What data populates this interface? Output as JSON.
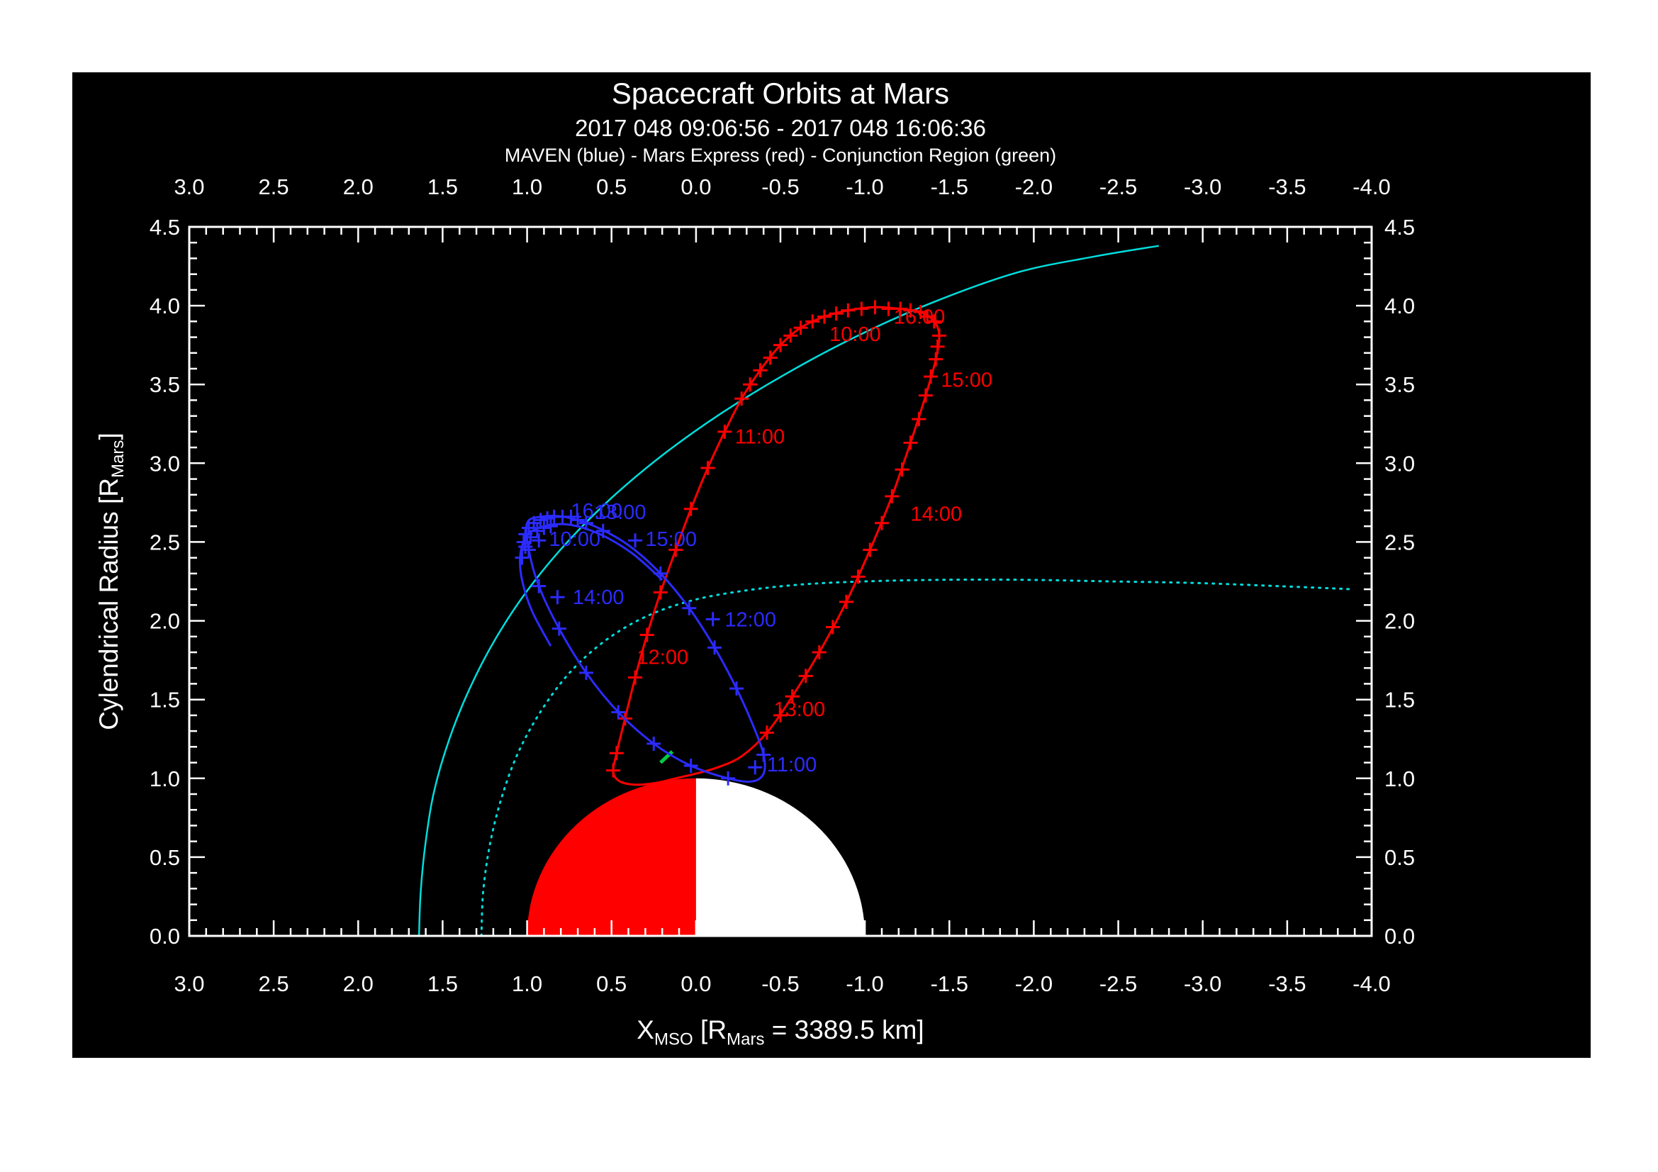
{
  "app": {
    "background": "#ffffff",
    "canvas_background": "#000000",
    "frame_color": "#ffffff",
    "text_color": "#ffffff"
  },
  "titles": {
    "main": "Spacecraft Orbits at Mars",
    "time_range": "2017 048 09:06:56 - 2017 048 16:06:36",
    "legend": "MAVEN (blue) - Mars Express (red) - Conjunction Region (green)"
  },
  "axes": {
    "x": {
      "label_parts": [
        {
          "t": "X"
        },
        {
          "t": "MSO",
          "sub": true
        },
        {
          "t": " [R"
        },
        {
          "t": "Mars",
          "sub": true
        },
        {
          "t": " = 3389.5 km]"
        }
      ],
      "range": [
        3.0,
        -4.0
      ],
      "tick_labels": [
        "3.0",
        "2.5",
        "2.0",
        "1.5",
        "1.0",
        "0.5",
        "0.0",
        "-0.5",
        "-1.0",
        "-1.5",
        "-2.0",
        "-2.5",
        "-3.0",
        "-3.5",
        "-4.0"
      ],
      "tick_values": [
        3,
        2.5,
        2,
        1.5,
        1,
        0.5,
        0,
        -0.5,
        -1,
        -1.5,
        -2,
        -2.5,
        -3,
        -3.5,
        -4
      ],
      "minor_step": 0.1
    },
    "y": {
      "label_parts": [
        {
          "t": "Cylendrical Radius [R"
        },
        {
          "t": "Mars",
          "sub": true
        },
        {
          "t": "]"
        }
      ],
      "range": [
        0.0,
        4.5
      ],
      "tick_labels": [
        "0.0",
        "0.5",
        "1.0",
        "1.5",
        "2.0",
        "2.5",
        "3.0",
        "3.5",
        "4.0",
        "4.5"
      ],
      "tick_values": [
        0,
        0.5,
        1,
        1.5,
        2,
        2.5,
        3,
        3.5,
        4,
        4.5
      ],
      "minor_step": 0.1
    }
  },
  "chart_data": {
    "type": "line",
    "title": "Spacecraft Orbits at Mars",
    "subtitle": "2017 048 09:06:56 - 2017 048 16:06:36",
    "xlabel": "X_MSO [R_Mars = 3389.5 km]",
    "ylabel": "Cylendrical Radius [R_Mars]",
    "xlim": [
      3.0,
      -4.0
    ],
    "ylim": [
      0.0,
      4.5
    ],
    "grid": false,
    "mars": {
      "center": [
        0,
        0
      ],
      "radius": 1.0,
      "dayside_color": "#ff0000",
      "nightside_color": "#ffffff",
      "dayside": "positive-x"
    },
    "series": [
      {
        "name": "bow-shock-boundary",
        "color": "#00dddd",
        "style": "solid",
        "width": 2.5,
        "closed": false,
        "points": [
          [
            1.64,
            0.0
          ],
          [
            1.63,
            0.28
          ],
          [
            1.6,
            0.6
          ],
          [
            1.55,
            0.92
          ],
          [
            1.46,
            1.25
          ],
          [
            1.34,
            1.57
          ],
          [
            1.19,
            1.88
          ],
          [
            1.0,
            2.19
          ],
          [
            0.77,
            2.49
          ],
          [
            0.5,
            2.78
          ],
          [
            0.2,
            3.05
          ],
          [
            -0.14,
            3.31
          ],
          [
            -0.52,
            3.56
          ],
          [
            -0.94,
            3.8
          ],
          [
            -1.4,
            4.02
          ],
          [
            -1.9,
            4.21
          ],
          [
            -2.35,
            4.31
          ],
          [
            -2.74,
            4.38
          ]
        ]
      },
      {
        "name": "magnetic-pileup-boundary",
        "color": "#00dddd",
        "style": "dotted",
        "width": 3,
        "closed": false,
        "points": [
          [
            1.27,
            0.0
          ],
          [
            1.26,
            0.28
          ],
          [
            1.22,
            0.58
          ],
          [
            1.15,
            0.88
          ],
          [
            1.05,
            1.17
          ],
          [
            0.91,
            1.44
          ],
          [
            0.74,
            1.68
          ],
          [
            0.53,
            1.88
          ],
          [
            0.29,
            2.03
          ],
          [
            0.02,
            2.13
          ],
          [
            -0.28,
            2.19
          ],
          [
            -0.62,
            2.23
          ],
          [
            -1.0,
            2.25
          ],
          [
            -1.45,
            2.26
          ],
          [
            -1.95,
            2.26
          ],
          [
            -2.45,
            2.25
          ],
          [
            -2.95,
            2.24
          ],
          [
            -3.45,
            2.22
          ],
          [
            -3.89,
            2.2
          ]
        ]
      },
      {
        "name": "conjunction-region",
        "color": "#00cc44",
        "style": "solid",
        "width": 5,
        "closed": false,
        "points": [
          [
            0.21,
            1.1
          ],
          [
            0.14,
            1.17
          ]
        ]
      },
      {
        "name": "mars-express-orbit",
        "color": "#ff0000",
        "style": "solid",
        "width": 3,
        "closed": true,
        "points": [
          [
            -0.9,
            3.97
          ],
          [
            -0.76,
            3.93
          ],
          [
            -0.62,
            3.86
          ],
          [
            -0.5,
            3.75
          ],
          [
            -0.38,
            3.59
          ],
          [
            -0.27,
            3.41
          ],
          [
            -0.17,
            3.2
          ],
          [
            -0.07,
            2.97
          ],
          [
            0.03,
            2.71
          ],
          [
            0.12,
            2.45
          ],
          [
            0.21,
            2.18
          ],
          [
            0.29,
            1.91
          ],
          [
            0.36,
            1.64
          ],
          [
            0.42,
            1.38
          ],
          [
            0.47,
            1.16
          ],
          [
            0.49,
            1.04
          ],
          [
            0.45,
            0.98
          ],
          [
            0.36,
            0.96
          ],
          [
            0.24,
            0.97
          ],
          [
            0.12,
            1.0
          ],
          [
            0.0,
            1.03
          ],
          [
            -0.13,
            1.07
          ],
          [
            -0.27,
            1.14
          ],
          [
            -0.42,
            1.29
          ],
          [
            -0.57,
            1.52
          ],
          [
            -0.73,
            1.8
          ],
          [
            -0.89,
            2.12
          ],
          [
            -1.03,
            2.45
          ],
          [
            -1.16,
            2.79
          ],
          [
            -1.27,
            3.13
          ],
          [
            -1.36,
            3.43
          ],
          [
            -1.42,
            3.66
          ],
          [
            -1.44,
            3.81
          ],
          [
            -1.41,
            3.9
          ],
          [
            -1.33,
            3.96
          ],
          [
            -1.21,
            3.98
          ],
          [
            -1.06,
            3.99
          ]
        ],
        "marks": [
          [
            -0.9,
            3.97
          ],
          [
            -0.83,
            3.95
          ],
          [
            -0.76,
            3.93
          ],
          [
            -0.69,
            3.9
          ],
          [
            -0.62,
            3.86
          ],
          [
            -0.56,
            3.81
          ],
          [
            -0.5,
            3.75
          ],
          [
            -0.44,
            3.67
          ],
          [
            -0.38,
            3.59
          ],
          [
            -0.32,
            3.5
          ],
          [
            -0.27,
            3.41
          ],
          [
            -0.17,
            3.2
          ],
          [
            -0.07,
            2.97
          ],
          [
            0.03,
            2.71
          ],
          [
            0.12,
            2.45
          ],
          [
            0.21,
            2.18
          ],
          [
            0.29,
            1.91
          ],
          [
            0.36,
            1.64
          ],
          [
            0.42,
            1.38
          ],
          [
            0.47,
            1.16
          ],
          [
            0.49,
            1.05
          ],
          [
            -0.42,
            1.29
          ],
          [
            -0.5,
            1.4
          ],
          [
            -0.57,
            1.52
          ],
          [
            -0.65,
            1.65
          ],
          [
            -0.73,
            1.8
          ],
          [
            -0.81,
            1.96
          ],
          [
            -0.89,
            2.12
          ],
          [
            -0.96,
            2.28
          ],
          [
            -1.03,
            2.45
          ],
          [
            -1.1,
            2.62
          ],
          [
            -1.16,
            2.79
          ],
          [
            -1.22,
            2.96
          ],
          [
            -1.27,
            3.13
          ],
          [
            -1.32,
            3.28
          ],
          [
            -1.36,
            3.43
          ],
          [
            -1.39,
            3.55
          ],
          [
            -1.42,
            3.66
          ],
          [
            -1.43,
            3.74
          ],
          [
            -1.44,
            3.81
          ],
          [
            -1.41,
            3.9
          ],
          [
            -1.37,
            3.93
          ],
          [
            -1.33,
            3.96
          ],
          [
            -1.27,
            3.97
          ],
          [
            -1.21,
            3.98
          ],
          [
            -1.14,
            3.98
          ],
          [
            -1.06,
            3.99
          ],
          [
            -0.98,
            3.98
          ]
        ],
        "time_labels": [
          {
            "text": "10:00",
            "x": -0.79,
            "y": 3.82
          },
          {
            "text": "16:00",
            "x": -1.17,
            "y": 3.93
          },
          {
            "text": "15:00",
            "x": -1.45,
            "y": 3.53
          },
          {
            "text": "11:00",
            "x": -0.23,
            "y": 3.17
          },
          {
            "text": "14:00",
            "x": -1.27,
            "y": 2.68
          },
          {
            "text": "12:00",
            "x": 0.35,
            "y": 1.77
          },
          {
            "text": "13:00",
            "x": -0.46,
            "y": 1.44
          }
        ]
      },
      {
        "name": "maven-orbit",
        "color": "#2b2bff",
        "style": "solid",
        "width": 3,
        "closed": true,
        "points": [
          [
            1.0,
            2.62
          ],
          [
            0.99,
            2.45
          ],
          [
            0.93,
            2.22
          ],
          [
            0.81,
            1.95
          ],
          [
            0.65,
            1.67
          ],
          [
            0.46,
            1.42
          ],
          [
            0.25,
            1.22
          ],
          [
            0.03,
            1.08
          ],
          [
            -0.19,
            1.0
          ],
          [
            -0.33,
            0.98
          ],
          [
            -0.4,
            1.03
          ],
          [
            -0.4,
            1.15
          ],
          [
            -0.34,
            1.33
          ],
          [
            -0.24,
            1.57
          ],
          [
            -0.11,
            1.83
          ],
          [
            0.04,
            2.08
          ],
          [
            0.21,
            2.3
          ],
          [
            0.4,
            2.48
          ],
          [
            0.6,
            2.6
          ],
          [
            0.78,
            2.66
          ],
          [
            0.92,
            2.66
          ]
        ],
        "marks": [
          [
            0.93,
            2.51
          ],
          [
            -0.35,
            1.07
          ],
          [
            -0.1,
            2.01
          ],
          [
            0.82,
            2.15
          ],
          [
            0.36,
            2.51
          ],
          [
            0.74,
            2.66
          ],
          [
            0.79,
            2.66
          ],
          [
            0.84,
            2.66
          ],
          [
            0.88,
            2.65
          ],
          [
            0.92,
            2.64
          ],
          [
            0.96,
            2.62
          ],
          [
            0.99,
            2.59
          ],
          [
            1.01,
            2.55
          ],
          [
            1.02,
            2.5
          ],
          [
            0.86,
            2.6
          ],
          [
            0.9,
            2.59
          ],
          [
            0.94,
            2.57
          ],
          [
            0.98,
            2.53
          ],
          [
            1.01,
            2.47
          ],
          [
            1.03,
            2.4
          ],
          [
            0.7,
            2.64
          ],
          [
            0.65,
            2.62
          ],
          [
            0.46,
            1.42
          ],
          [
            0.25,
            1.22
          ],
          [
            0.03,
            1.08
          ],
          [
            -0.19,
            1.0
          ],
          [
            -0.4,
            1.15
          ],
          [
            -0.24,
            1.57
          ],
          [
            -0.11,
            1.83
          ],
          [
            0.04,
            2.08
          ],
          [
            0.21,
            2.3
          ],
          [
            0.55,
            2.57
          ],
          [
            0.65,
            1.67
          ],
          [
            0.81,
            1.95
          ],
          [
            0.93,
            2.22
          ],
          [
            0.99,
            2.45
          ]
        ],
        "time_labels": [
          {
            "text": "10:00",
            "x": 0.87,
            "y": 2.52
          },
          {
            "text": "16:00",
            "x": 0.74,
            "y": 2.7
          },
          {
            "text": "13:00",
            "x": 0.6,
            "y": 2.69
          },
          {
            "text": "15:00",
            "x": 0.3,
            "y": 2.52
          },
          {
            "text": "14:00",
            "x": 0.73,
            "y": 2.15
          },
          {
            "text": "12:00",
            "x": -0.17,
            "y": 2.01
          },
          {
            "text": "11:00",
            "x": -0.42,
            "y": 1.09
          }
        ]
      },
      {
        "name": "maven-orbit-second-pass",
        "color": "#2b2bff",
        "style": "solid",
        "width": 3,
        "closed": false,
        "points": [
          [
            0.2,
            2.26
          ],
          [
            0.38,
            2.43
          ],
          [
            0.57,
            2.55
          ],
          [
            0.75,
            2.61
          ],
          [
            0.9,
            2.6
          ],
          [
            1.0,
            2.54
          ],
          [
            1.04,
            2.42
          ],
          [
            1.03,
            2.26
          ],
          [
            0.97,
            2.06
          ],
          [
            0.86,
            1.84
          ]
        ]
      }
    ]
  }
}
